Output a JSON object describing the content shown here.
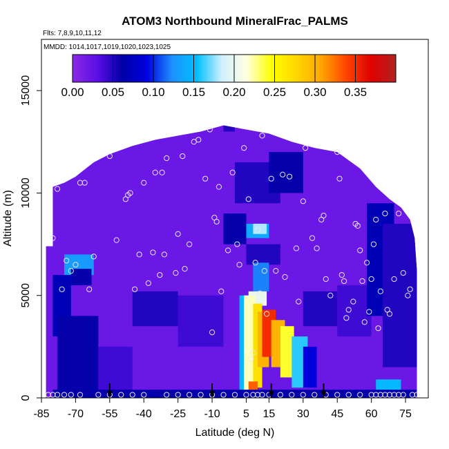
{
  "chart_data": {
    "type": "heatmap",
    "title": "ATOM3 Northbound MineralFrac_PALMS",
    "subtitle_flights": "Flts: 7,8,9,10,11,12",
    "subtitle_dates": "MMDD: 1014,1017,1019,1020,1023,1025",
    "xlabel": "Latitude (deg N)",
    "ylabel": "Altitude (m)",
    "xlim": [
      -85,
      85
    ],
    "ylim": [
      0,
      17500
    ],
    "x_ticks": [
      -85,
      -70,
      -55,
      -40,
      -25,
      -10,
      5,
      15,
      30,
      45,
      60,
      75
    ],
    "x_tick_labels": [
      "-85",
      "-70",
      "-55",
      "-40",
      "-25",
      "-10",
      "5",
      "15",
      "30",
      "45",
      "60",
      "75"
    ],
    "y_ticks": [
      0,
      5000,
      10000,
      15000
    ],
    "y_tick_labels": [
      "0",
      "5000",
      "10000",
      "15000"
    ],
    "colorbar": {
      "min": 0.0,
      "max": 0.4,
      "ticks": [
        0.0,
        0.05,
        0.1,
        0.15,
        0.2,
        0.25,
        0.3,
        0.35
      ],
      "tick_labels": [
        "0.00",
        "0.05",
        "0.10",
        "0.15",
        "0.20",
        "0.25",
        "0.30",
        "0.35"
      ],
      "colors": [
        "#8A2BE2",
        "#5B0EE8",
        "#0000A8",
        "#0000E0",
        "#1E90FF",
        "#00BFFF",
        "#CFEFFF",
        "#FFFFE0",
        "#FFFF00",
        "#FFD700",
        "#FFA500",
        "#FF4500",
        "#E00000",
        "#B22222"
      ]
    },
    "grid": false,
    "legend": "none",
    "background_value": 0.02,
    "cells": [
      {
        "lat": [
          -80,
          -70
        ],
        "alt": [
          6200,
          7400
        ],
        "value": 0.02
      },
      {
        "lat": [
          -75,
          -62
        ],
        "alt": [
          6000,
          7000
        ],
        "value": 0.13
      },
      {
        "lat": [
          -72,
          -63
        ],
        "alt": [
          5500,
          6300
        ],
        "value": 0.06
      },
      {
        "lat": [
          -80,
          -72
        ],
        "alt": [
          3000,
          6000
        ],
        "value": 0.07
      },
      {
        "lat": [
          -78,
          -60
        ],
        "alt": [
          0,
          4000
        ],
        "value": 0.06
      },
      {
        "lat": [
          -60,
          -45
        ],
        "alt": [
          0,
          2500
        ],
        "value": 0.04
      },
      {
        "lat": [
          -45,
          -25
        ],
        "alt": [
          3500,
          5200
        ],
        "value": 0.05
      },
      {
        "lat": [
          -25,
          -5
        ],
        "alt": [
          2500,
          5000
        ],
        "value": 0.04
      },
      {
        "lat": [
          -5,
          5
        ],
        "alt": [
          7500,
          9000
        ],
        "value": 0.06
      },
      {
        "lat": [
          5,
          15
        ],
        "alt": [
          7800,
          8500
        ],
        "value": 0.14
      },
      {
        "lat": [
          8,
          14
        ],
        "alt": [
          8000,
          8500
        ],
        "value": 0.18
      },
      {
        "lat": [
          0,
          20
        ],
        "alt": [
          9500,
          11500
        ],
        "value": 0.05
      },
      {
        "lat": [
          15,
          30
        ],
        "alt": [
          10000,
          12000
        ],
        "value": 0.06
      },
      {
        "lat": [
          5,
          20
        ],
        "alt": [
          6500,
          7500
        ],
        "value": 0.05
      },
      {
        "lat": [
          8,
          15
        ],
        "alt": [
          5200,
          6600
        ],
        "value": 0.12
      },
      {
        "lat": [
          6,
          14
        ],
        "alt": [
          4500,
          5200
        ],
        "value": 0.2
      },
      {
        "lat": [
          2,
          6
        ],
        "alt": [
          0,
          5000
        ],
        "value": 0.15
      },
      {
        "lat": [
          4,
          9
        ],
        "alt": [
          0,
          5000
        ],
        "value": 0.22
      },
      {
        "lat": [
          8,
          12
        ],
        "alt": [
          500,
          4600
        ],
        "value": 0.27
      },
      {
        "lat": [
          10,
          15
        ],
        "alt": [
          1500,
          4200
        ],
        "value": 0.3
      },
      {
        "lat": [
          12,
          18
        ],
        "alt": [
          2000,
          4300
        ],
        "value": 0.35
      },
      {
        "lat": [
          16,
          22
        ],
        "alt": [
          1500,
          3800
        ],
        "value": 0.3
      },
      {
        "lat": [
          20,
          26
        ],
        "alt": [
          1000,
          3500
        ],
        "value": 0.24
      },
      {
        "lat": [
          25,
          32
        ],
        "alt": [
          500,
          3000
        ],
        "value": 0.16
      },
      {
        "lat": [
          30,
          36
        ],
        "alt": [
          500,
          2500
        ],
        "value": 0.09
      },
      {
        "lat": [
          6,
          10
        ],
        "alt": [
          0,
          800
        ],
        "value": 0.33
      },
      {
        "lat": [
          30,
          45
        ],
        "alt": [
          3500,
          5200
        ],
        "value": 0.05
      },
      {
        "lat": [
          45,
          60
        ],
        "alt": [
          3000,
          5500
        ],
        "value": 0.04
      },
      {
        "lat": [
          58,
          70
        ],
        "alt": [
          4000,
          9500
        ],
        "value": 0.07
      },
      {
        "lat": [
          65,
          80
        ],
        "alt": [
          1500,
          8500
        ],
        "value": 0.05
      },
      {
        "lat": [
          62,
          73
        ],
        "alt": [
          0,
          900
        ],
        "value": 0.15
      },
      {
        "lat": [
          -80,
          80
        ],
        "alt": [
          0,
          400
        ],
        "value": 0.06
      },
      {
        "lat": [
          -5,
          0
        ],
        "alt": [
          13000,
          13500
        ],
        "value": 0.05
      }
    ],
    "profile_points": [
      {
        "lat": -80,
        "alt": 7800
      },
      {
        "lat": -78,
        "alt": 10200
      },
      {
        "lat": -76,
        "alt": 5300
      },
      {
        "lat": -74,
        "alt": 6700
      },
      {
        "lat": -72,
        "alt": 6200
      },
      {
        "lat": -70,
        "alt": 6500
      },
      {
        "lat": -68,
        "alt": 10500
      },
      {
        "lat": -66,
        "alt": 10500
      },
      {
        "lat": -64,
        "alt": 5300
      },
      {
        "lat": -62,
        "alt": 6900
      },
      {
        "lat": -55,
        "alt": 11800
      },
      {
        "lat": -52,
        "alt": 7700
      },
      {
        "lat": -48,
        "alt": 9700
      },
      {
        "lat": -47,
        "alt": 9900
      },
      {
        "lat": -46,
        "alt": 10000
      },
      {
        "lat": -44,
        "alt": 5300
      },
      {
        "lat": -42,
        "alt": 7000
      },
      {
        "lat": -40,
        "alt": 10500
      },
      {
        "lat": -38,
        "alt": 5600
      },
      {
        "lat": -36,
        "alt": 7100
      },
      {
        "lat": -35,
        "alt": 11000
      },
      {
        "lat": -33,
        "alt": 6000
      },
      {
        "lat": -32,
        "alt": 11000
      },
      {
        "lat": -31,
        "alt": 7000
      },
      {
        "lat": -30,
        "alt": 11700
      },
      {
        "lat": -26,
        "alt": 6100
      },
      {
        "lat": -25,
        "alt": 8000
      },
      {
        "lat": -23,
        "alt": 11800
      },
      {
        "lat": -22,
        "alt": 6300
      },
      {
        "lat": -20,
        "alt": 7500
      },
      {
        "lat": -18,
        "alt": 12500
      },
      {
        "lat": -16,
        "alt": 12600
      },
      {
        "lat": -13,
        "alt": 10700
      },
      {
        "lat": -11,
        "alt": 13100
      },
      {
        "lat": -10,
        "alt": 3200
      },
      {
        "lat": -9,
        "alt": 8800
      },
      {
        "lat": -8,
        "alt": 8600
      },
      {
        "lat": -7,
        "alt": 10300
      },
      {
        "lat": -6,
        "alt": 5200
      },
      {
        "lat": -3,
        "alt": 7200
      },
      {
        "lat": -1,
        "alt": 11000
      },
      {
        "lat": 1,
        "alt": 7500
      },
      {
        "lat": 2,
        "alt": 6500
      },
      {
        "lat": 4,
        "alt": 12200
      },
      {
        "lat": 6,
        "alt": 9700
      },
      {
        "lat": 7,
        "alt": 1900
      },
      {
        "lat": 8,
        "alt": 2200
      },
      {
        "lat": 9,
        "alt": 6600
      },
      {
        "lat": 10,
        "alt": 8200
      },
      {
        "lat": 11,
        "alt": 5100
      },
      {
        "lat": 12,
        "alt": 12800
      },
      {
        "lat": 13,
        "alt": 6200
      },
      {
        "lat": 14,
        "alt": 4100
      },
      {
        "lat": 16,
        "alt": 10700
      },
      {
        "lat": 18,
        "alt": 6200
      },
      {
        "lat": 21,
        "alt": 10900
      },
      {
        "lat": 22,
        "alt": 5900
      },
      {
        "lat": 24,
        "alt": 10800
      },
      {
        "lat": 27,
        "alt": 7300
      },
      {
        "lat": 28,
        "alt": 4700
      },
      {
        "lat": 30,
        "alt": 9600
      },
      {
        "lat": 31,
        "alt": 12200
      },
      {
        "lat": 34,
        "alt": 7800
      },
      {
        "lat": 36,
        "alt": 7300
      },
      {
        "lat": 38,
        "alt": 8700
      },
      {
        "lat": 39,
        "alt": 8900
      },
      {
        "lat": 40,
        "alt": 5800
      },
      {
        "lat": 42,
        "alt": 5000
      },
      {
        "lat": 45,
        "alt": 12000
      },
      {
        "lat": 46,
        "alt": 10700
      },
      {
        "lat": 47,
        "alt": 6000
      },
      {
        "lat": 48,
        "alt": 5700
      },
      {
        "lat": 49,
        "alt": 3900
      },
      {
        "lat": 50,
        "alt": 4300
      },
      {
        "lat": 52,
        "alt": 4700
      },
      {
        "lat": 53,
        "alt": 8500
      },
      {
        "lat": 54,
        "alt": 8400
      },
      {
        "lat": 55,
        "alt": 7200
      },
      {
        "lat": 56,
        "alt": 5700
      },
      {
        "lat": 57,
        "alt": 3700
      },
      {
        "lat": 58,
        "alt": 6600
      },
      {
        "lat": 59,
        "alt": 4200
      },
      {
        "lat": 60,
        "alt": 5800
      },
      {
        "lat": 61,
        "alt": 7500
      },
      {
        "lat": 62,
        "alt": 8700
      },
      {
        "lat": 63,
        "alt": 3400
      },
      {
        "lat": 64,
        "alt": 5200
      },
      {
        "lat": 66,
        "alt": 9000
      },
      {
        "lat": 67,
        "alt": 4300
      },
      {
        "lat": 68,
        "alt": 4100
      },
      {
        "lat": 70,
        "alt": 5800
      },
      {
        "lat": 72,
        "alt": 9000
      },
      {
        "lat": 74,
        "alt": 6100
      },
      {
        "lat": 76,
        "alt": 5000
      },
      {
        "lat": 77,
        "alt": 5300
      }
    ],
    "surface_points": [
      -82,
      -80,
      -78,
      -75,
      -72,
      -68,
      -60,
      -55,
      -50,
      -45,
      -40,
      -30,
      -25,
      -20,
      -15,
      -10,
      -5,
      0,
      5,
      8,
      10,
      12,
      15,
      20,
      25,
      30,
      35,
      40,
      45,
      50,
      55,
      60,
      62,
      64,
      66,
      68,
      70,
      72,
      74,
      78,
      80
    ],
    "arrows": [
      -55,
      -10,
      16,
      39
    ]
  }
}
